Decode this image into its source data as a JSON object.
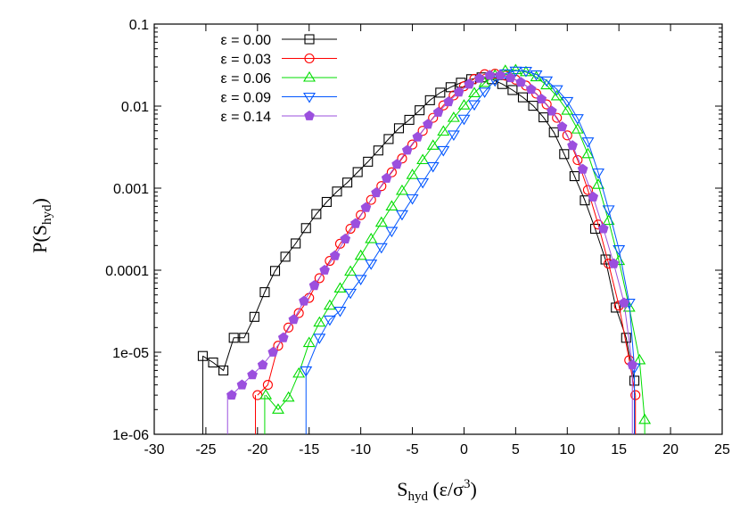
{
  "chart_data": {
    "type": "line",
    "x_scale": "linear",
    "y_scale": "log",
    "xlim": [
      -30,
      25
    ],
    "ylim": [
      1e-06,
      0.1
    ],
    "x_ticks": [
      -30,
      -25,
      -20,
      -15,
      -10,
      -5,
      0,
      5,
      10,
      15,
      20,
      25
    ],
    "x_tick_labels": [
      "-30",
      "-25",
      "-20",
      "-15",
      "-10",
      "-5",
      "0",
      "5",
      "10",
      "15",
      "20",
      "25"
    ],
    "y_ticks": [
      1e-06,
      1e-05,
      0.0001,
      0.001,
      0.01,
      0.1
    ],
    "y_tick_labels": [
      "1e-06",
      "1e-05",
      "0.0001",
      "0.001",
      "0.01",
      "0.1"
    ],
    "xlabel": {
      "base": "S",
      "sub": "hyd",
      "rest": " (ε/σ",
      "sup": "3",
      "close": ")"
    },
    "ylabel": {
      "base": "P(S",
      "sub": "hyd",
      "close": ")"
    },
    "grid": false,
    "legend_position": "top-left",
    "series": [
      {
        "name": "ε = 0.00",
        "color": "#000000",
        "marker": "square",
        "drop_x": -25.3,
        "x": [
          -25.3,
          -24.3,
          -23.3,
          -22.3,
          -21.3,
          -20.3,
          -19.3,
          -18.3,
          -17.3,
          -16.3,
          -15.3,
          -14.3,
          -13.3,
          -12.3,
          -11.3,
          -10.3,
          -9.3,
          -8.3,
          -7.3,
          -6.3,
          -5.3,
          -4.3,
          -3.3,
          -2.3,
          -1.3,
          -0.3,
          0.7,
          1.7,
          2.7,
          3.7,
          4.7,
          5.7,
          6.7,
          7.7,
          8.7,
          9.7,
          10.7,
          11.7,
          12.7,
          13.7,
          14.7,
          15.7,
          16.5
        ],
        "y": [
          9e-06,
          7.5e-06,
          6e-06,
          1.5e-05,
          1.5e-05,
          2.7e-05,
          5.4e-05,
          9.8e-05,
          0.000146,
          0.000212,
          0.000326,
          0.000483,
          0.000679,
          0.00091,
          0.00117,
          0.00157,
          0.0021,
          0.00288,
          0.00397,
          0.00537,
          0.0068,
          0.0089,
          0.0118,
          0.0146,
          0.017,
          0.0193,
          0.0213,
          0.0224,
          0.0213,
          0.0186,
          0.0157,
          0.0128,
          0.0101,
          0.0073,
          0.0048,
          0.0026,
          0.0014,
          0.00071,
          0.00032,
          0.000135,
          3.5e-05,
          1.5e-05,
          4.5e-06
        ]
      },
      {
        "name": "ε = 0.03",
        "color": "#ff0000",
        "marker": "circle",
        "drop_x": -20.2,
        "x": [
          -20.0,
          -19.0,
          -18.0,
          -17.0,
          -16.0,
          -15.0,
          -14.0,
          -13.0,
          -12.0,
          -11.0,
          -10.0,
          -9.0,
          -8.0,
          -7.0,
          -6.0,
          -5.0,
          -4.0,
          -3.0,
          -2.0,
          -1.0,
          0.0,
          1.0,
          2.0,
          3.0,
          4.0,
          5.0,
          6.0,
          7.0,
          8.0,
          9.0,
          10.0,
          11.0,
          12.0,
          13.0,
          14.0,
          15.0,
          16.0,
          16.6
        ],
        "y": [
          3e-06,
          4e-06,
          1.2e-05,
          2e-05,
          3e-05,
          4.6e-05,
          8e-05,
          0.00013,
          0.00021,
          0.00032,
          0.00047,
          0.00072,
          0.00106,
          0.00156,
          0.0023,
          0.0034,
          0.005,
          0.0072,
          0.0102,
          0.0135,
          0.0175,
          0.0215,
          0.0245,
          0.0248,
          0.0235,
          0.021,
          0.0178,
          0.0142,
          0.0105,
          0.0072,
          0.0044,
          0.0022,
          0.00095,
          0.00036,
          0.00012,
          3.7e-05,
          8e-06,
          3e-06
        ]
      },
      {
        "name": "ε = 0.06",
        "color": "#00dd00",
        "marker": "triangle-up",
        "drop_x": -19.3,
        "x": [
          -19.2,
          -18.0,
          -17.0,
          -16.0,
          -15.0,
          -14.0,
          -13.0,
          -12.0,
          -11.0,
          -10.0,
          -9.0,
          -8.0,
          -7.0,
          -6.0,
          -5.0,
          -4.0,
          -3.0,
          -2.0,
          -1.0,
          0.0,
          1.0,
          2.0,
          3.0,
          4.0,
          5.0,
          6.0,
          7.0,
          8.0,
          9.0,
          10.0,
          11.0,
          12.0,
          13.0,
          14.0,
          15.0,
          16.0,
          17.0,
          17.5
        ],
        "y": [
          3e-06,
          2e-06,
          2.8e-06,
          5.5e-06,
          1.3e-05,
          2.3e-05,
          3.7e-05,
          6e-05,
          9.6e-05,
          0.00015,
          0.00024,
          0.00038,
          0.0006,
          0.00093,
          0.00145,
          0.0022,
          0.0033,
          0.0049,
          0.0072,
          0.0102,
          0.0144,
          0.0192,
          0.0236,
          0.027,
          0.0275,
          0.026,
          0.0225,
          0.018,
          0.0132,
          0.0088,
          0.0052,
          0.0026,
          0.0011,
          0.0004,
          0.00013,
          3.5e-05,
          8e-06,
          1.5e-06
        ]
      },
      {
        "name": "ε = 0.09",
        "color": "#0055ff",
        "marker": "triangle-down",
        "drop_x": -15.3,
        "x": [
          -15.3,
          -14.0,
          -13.0,
          -12.0,
          -11.0,
          -10.0,
          -9.0,
          -8.0,
          -7.0,
          -6.0,
          -5.0,
          -4.0,
          -3.0,
          -2.0,
          -1.0,
          0.0,
          1.0,
          2.0,
          3.0,
          4.0,
          5.0,
          6.0,
          7.0,
          8.0,
          9.0,
          10.0,
          11.0,
          12.0,
          13.0,
          14.0,
          15.0,
          16.0,
          16.5
        ],
        "y": [
          6e-06,
          1.5e-05,
          2.5e-05,
          3.2e-05,
          5.3e-05,
          7.8e-05,
          0.00012,
          0.00019,
          0.0003,
          0.00048,
          0.00075,
          0.00118,
          0.00185,
          0.0029,
          0.0045,
          0.007,
          0.0105,
          0.015,
          0.0205,
          0.025,
          0.027,
          0.0268,
          0.0243,
          0.0205,
          0.016,
          0.0115,
          0.0071,
          0.0037,
          0.00155,
          0.00055,
          0.00018,
          4e-05,
          6.5e-06
        ]
      },
      {
        "name": "ε = 0.14",
        "color": "#9b4fde",
        "marker": "pentagon",
        "drop_x": -22.9,
        "x": [
          -22.5,
          -21.5,
          -20.5,
          -19.5,
          -18.5,
          -17.5,
          -16.5,
          -15.5,
          -14.5,
          -13.5,
          -12.5,
          -11.5,
          -10.5,
          -9.5,
          -8.5,
          -7.5,
          -6.5,
          -5.5,
          -4.5,
          -3.5,
          -2.5,
          -1.5,
          -0.5,
          0.5,
          1.5,
          2.5,
          3.5,
          4.5,
          5.5,
          6.5,
          7.5,
          8.5,
          9.5,
          10.5,
          11.5,
          12.5,
          13.5,
          14.5,
          15.5,
          16.3
        ],
        "y": [
          3e-06,
          4e-06,
          5.3e-06,
          7e-06,
          1e-05,
          1.5e-05,
          2.5e-05,
          4.2e-05,
          6.5e-05,
          0.0001,
          0.00015,
          0.00024,
          0.00037,
          0.00058,
          0.00088,
          0.00132,
          0.00195,
          0.0029,
          0.0042,
          0.006,
          0.0084,
          0.0113,
          0.0148,
          0.0185,
          0.0218,
          0.0238,
          0.0238,
          0.0222,
          0.0195,
          0.016,
          0.0122,
          0.0087,
          0.0056,
          0.0033,
          0.0017,
          0.00078,
          0.00032,
          0.00012,
          4e-05,
          7e-06
        ]
      }
    ]
  }
}
